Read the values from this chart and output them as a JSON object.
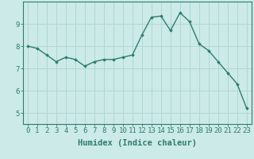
{
  "xlabel": "Humidex (Indice chaleur)",
  "ylabel": "",
  "x_values": [
    0,
    1,
    2,
    3,
    4,
    5,
    6,
    7,
    8,
    9,
    10,
    11,
    12,
    13,
    14,
    15,
    16,
    17,
    18,
    19,
    20,
    21,
    22,
    23
  ],
  "y_values": [
    8.0,
    7.9,
    7.6,
    7.3,
    7.5,
    7.4,
    7.1,
    7.3,
    7.4,
    7.4,
    7.5,
    7.6,
    8.5,
    9.3,
    9.35,
    8.7,
    9.5,
    9.1,
    8.1,
    7.8,
    7.3,
    6.8,
    6.3,
    5.2
  ],
  "line_color": "#2d7d6e",
  "marker": "D",
  "marker_size": 1.8,
  "line_width": 1.0,
  "bg_color": "#cceae7",
  "grid_color": "#b0d8d4",
  "axis_color": "#2d7d6e",
  "tick_color": "#2d7d6e",
  "label_color": "#2d7d6e",
  "ylim": [
    4.5,
    10.0
  ],
  "yticks": [
    5,
    6,
    7,
    8,
    9
  ],
  "xlim": [
    -0.5,
    23.5
  ],
  "xlabel_fontsize": 7.5,
  "tick_fontsize": 6.5
}
